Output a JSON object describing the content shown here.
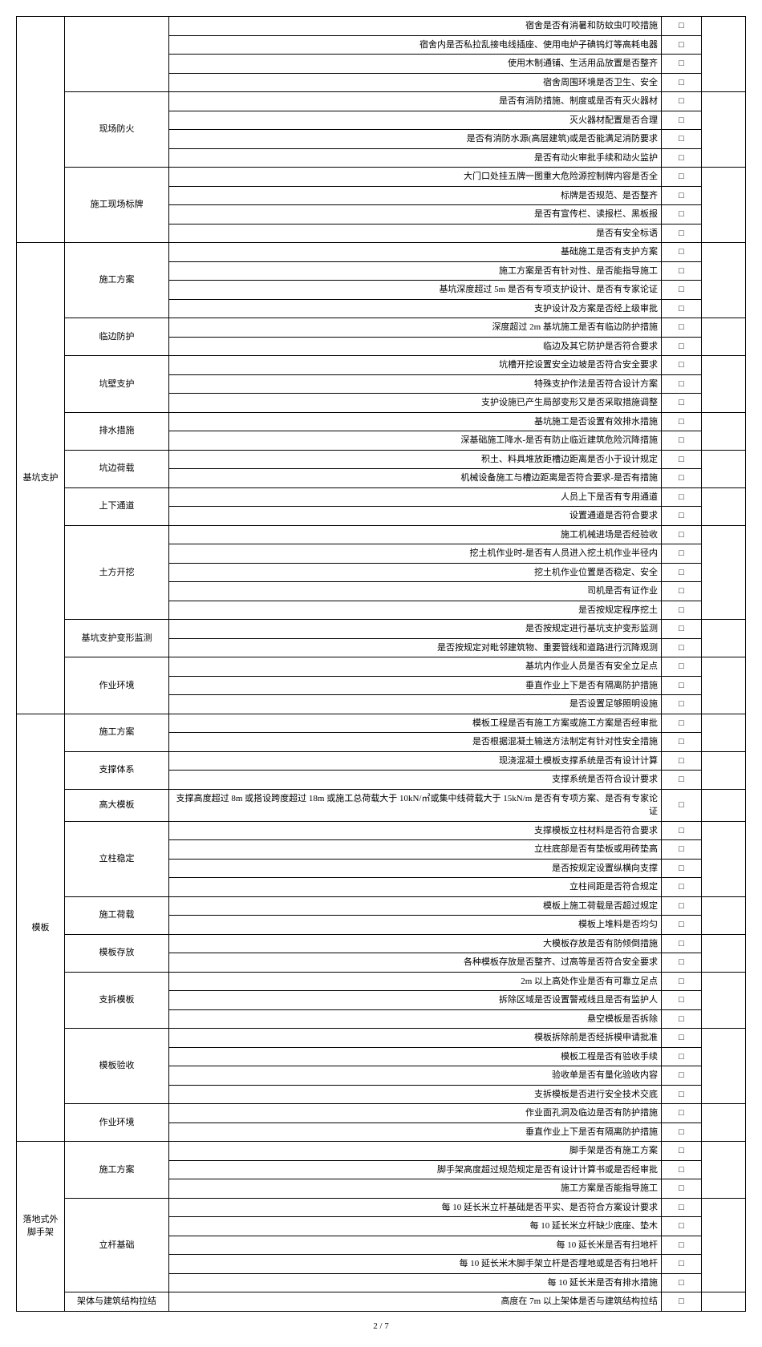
{
  "footer": "2 / 7",
  "categories": [
    {
      "name": "",
      "subs": [
        {
          "name": "",
          "items": [
            "宿舍是否有消暑和防蚊虫叮咬措施",
            "宿舍内是否私拉乱接电线插座、使用电炉子碘钨灯等高耗电器",
            "使用木制通铺、生活用品放置是否整齐",
            "宿舍周围环境是否卫生、安全"
          ]
        },
        {
          "name": "现场防火",
          "items": [
            "是否有消防措施、制度或是否有灭火器材",
            "灭火器材配置是否合理",
            "是否有消防水源(高层建筑)或是否能满足消防要求",
            "是否有动火审批手续和动火监护"
          ]
        },
        {
          "name": "施工现场标牌",
          "items": [
            "大门口处挂五牌一图重大危险源控制牌内容是否全",
            "标牌是否规范、是否整齐",
            "是否有宣传栏、读报栏、黑板报",
            "是否有安全标语"
          ]
        }
      ]
    },
    {
      "name": "基坑支护",
      "subs": [
        {
          "name": "施工方案",
          "items": [
            "基础施工是否有支护方案",
            "施工方案是否有针对性、是否能指导施工",
            "基坑深度超过 5m 是否有专项支护设计、是否有专家论证",
            "支护设计及方案是否经上级审批"
          ]
        },
        {
          "name": "临边防护",
          "items": [
            "深度超过 2m 基坑施工是否有临边防护措施",
            "临边及其它防护是否符合要求"
          ]
        },
        {
          "name": "坑壁支护",
          "items": [
            "坑槽开挖设置安全边坡是否符合安全要求",
            "特殊支护作法是否符合设计方案",
            "支护设施已产生局部变形又是否采取措施调整"
          ]
        },
        {
          "name": "排水措施",
          "items": [
            "基坑施工是否设置有效排水措施",
            "深基础施工降水-是否有防止临近建筑危险沉降措施"
          ]
        },
        {
          "name": "坑边荷载",
          "items": [
            "积土、料具堆放距槽边距离是否小于设计规定",
            "机械设备施工与槽边距离是否符合要求-是否有措施"
          ]
        },
        {
          "name": "上下通道",
          "items": [
            "人员上下是否有专用通道",
            "设置通道是否符合要求"
          ]
        },
        {
          "name": "土方开挖",
          "items": [
            "施工机械进场是否经验收",
            "挖土机作业时-是否有人员进入挖土机作业半径内",
            "挖土机作业位置是否稳定、安全",
            "司机是否有证作业",
            "是否按规定程序挖土"
          ]
        },
        {
          "name": "基坑支护变形监测",
          "items": [
            "是否按规定进行基坑支护变形监测",
            "是否按规定对毗邻建筑物、重要管线和道路进行沉降观测"
          ]
        },
        {
          "name": "作业环境",
          "items": [
            "基坑内作业人员是否有安全立足点",
            "垂直作业上下是否有隔离防护措施",
            "是否设置足够照明设施"
          ]
        }
      ]
    },
    {
      "name": "模板",
      "subs": [
        {
          "name": "施工方案",
          "items": [
            "模板工程是否有施工方案或施工方案是否经审批",
            "是否根据混凝土输送方法制定有针对性安全措施"
          ]
        },
        {
          "name": "支撑体系",
          "items": [
            "现浇混凝土模板支撑系统是否有设计计算",
            "支撑系统是否符合设计要求"
          ]
        },
        {
          "name": "高大模板",
          "single": true,
          "items": [
            "支撑高度超过 8m 或搭设跨度超过 18m 或施工总荷载大于 10kN/㎡或集中线荷载大于 15kN/m 是否有专项方案、是否有专家论证"
          ]
        },
        {
          "name": "立柱稳定",
          "items": [
            "支撑模板立柱材料是否符合要求",
            "立柱底部是否有垫板或用砖垫高",
            "是否按规定设置纵横向支撑",
            "立柱间距是否符合规定"
          ]
        },
        {
          "name": "施工荷载",
          "items": [
            "模板上施工荷载是否超过规定",
            "模板上堆料是否均匀"
          ]
        },
        {
          "name": "模板存放",
          "items": [
            "大模板存放是否有防倾倒措施",
            "各种模板存放是否整齐、过高等是否符合安全要求"
          ]
        },
        {
          "name": "支拆模板",
          "items": [
            "2m 以上高处作业是否有可靠立足点",
            "拆除区域是否设置警戒线且是否有监护人",
            "悬空模板是否拆除"
          ]
        },
        {
          "name": "模板验收",
          "items": [
            "模板拆除前是否经拆模申请批准",
            "模板工程是否有验收手续",
            "验收单是否有量化验收内容",
            "支拆模板是否进行安全技术交底"
          ]
        },
        {
          "name": "作业环境",
          "items": [
            "作业面孔洞及临边是否有防护措施",
            "垂直作业上下是否有隔离防护措施"
          ]
        }
      ]
    },
    {
      "name": "落地式外脚手架",
      "subs": [
        {
          "name": "施工方案",
          "items": [
            "脚手架是否有施工方案",
            "脚手架高度超过规范规定是否有设计计算书或是否经审批",
            "施工方案是否能指导施工"
          ]
        },
        {
          "name": "立杆基础",
          "items": [
            "每 10 延长米立杆基础是否平实、是否符合方案设计要求",
            "每 10 延长米立杆缺少底座、垫木",
            "每 10 延长米是否有扫地杆",
            "每 10 延长米木脚手架立杆是否埋地或是否有扫地杆",
            "每 10 延长米是否有排水措施"
          ]
        },
        {
          "name": "架体与建筑结构拉结",
          "items": [
            "高度在 7m 以上架体是否与建筑结构拉结"
          ]
        }
      ]
    }
  ]
}
